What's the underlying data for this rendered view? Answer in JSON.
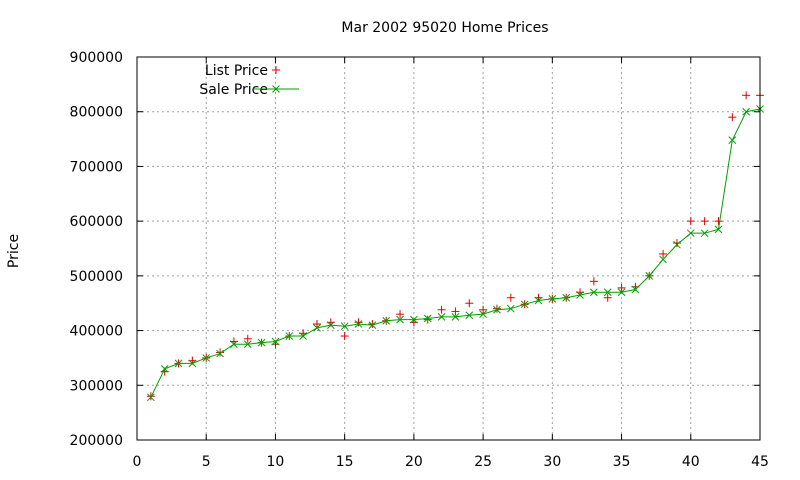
{
  "chart_data": {
    "type": "line",
    "title": "Mar 2002 95020 Home Prices",
    "ylabel": "Price",
    "xlabel": "",
    "xlim": [
      0,
      45
    ],
    "ylim": [
      200000,
      900000
    ],
    "x_ticks": [
      0,
      5,
      10,
      15,
      20,
      25,
      30,
      35,
      40,
      45
    ],
    "y_ticks": [
      200000,
      300000,
      400000,
      500000,
      600000,
      700000,
      800000,
      900000
    ],
    "grid": true,
    "legend_position": "top-left",
    "series": [
      {
        "name": "List Price",
        "style": "points",
        "marker": "plus",
        "color": "#e00000",
        "x": [
          1,
          2,
          3,
          4,
          5,
          6,
          7,
          8,
          9,
          10,
          11,
          12,
          13,
          14,
          15,
          16,
          17,
          18,
          19,
          20,
          21,
          22,
          23,
          24,
          25,
          26,
          27,
          28,
          29,
          30,
          31,
          32,
          33,
          34,
          35,
          36,
          37,
          38,
          39,
          40,
          41,
          42,
          43,
          44,
          45
        ],
        "values": [
          280000,
          325000,
          340000,
          345000,
          350000,
          360000,
          380000,
          385000,
          378000,
          375000,
          390000,
          395000,
          412000,
          415000,
          390000,
          415000,
          412000,
          418000,
          430000,
          415000,
          420000,
          438000,
          435000,
          450000,
          438000,
          440000,
          460000,
          448000,
          460000,
          458000,
          460000,
          470000,
          490000,
          460000,
          478000,
          480000,
          500000,
          540000,
          560000,
          600000,
          600000,
          600000,
          790000,
          830000,
          830000
        ]
      },
      {
        "name": "Sale Price",
        "style": "linespoints",
        "marker": "x",
        "color": "#00a000",
        "x": [
          1,
          2,
          3,
          4,
          5,
          6,
          7,
          8,
          9,
          10,
          11,
          12,
          13,
          14,
          15,
          16,
          17,
          18,
          19,
          20,
          21,
          22,
          23,
          24,
          25,
          26,
          27,
          28,
          29,
          30,
          31,
          32,
          33,
          34,
          35,
          36,
          37,
          38,
          39,
          40,
          41,
          42,
          43,
          44,
          45
        ],
        "values": [
          278000,
          330000,
          340000,
          340000,
          350000,
          358000,
          375000,
          375000,
          378000,
          380000,
          390000,
          390000,
          405000,
          410000,
          408000,
          412000,
          410000,
          418000,
          420000,
          420000,
          422000,
          425000,
          425000,
          428000,
          430000,
          438000,
          440000,
          448000,
          455000,
          458000,
          460000,
          465000,
          470000,
          470000,
          470000,
          475000,
          500000,
          530000,
          557000,
          578000,
          578000,
          585000,
          748000,
          800000,
          805000
        ]
      }
    ]
  }
}
